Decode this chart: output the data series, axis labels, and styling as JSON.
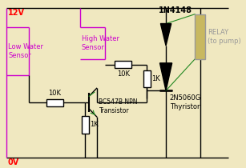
{
  "bg_color": "#f0e8c0",
  "label_12V": "12V",
  "label_0V": "0V",
  "label_1N4148": "1N4148",
  "label_relay": "RELAY\n(to pump)",
  "label_low_water": "Low Water\nSensor",
  "label_high_water": "High Water\nSensor",
  "label_10K_top": "10K",
  "label_1K_top": "1K",
  "label_10K_bot": "10K",
  "label_1K_bot": "1K",
  "label_transistor": "BC547B NPN\nTransistor",
  "label_thyristor": "2N5060G\nThyristor",
  "wire_color": "#000000",
  "magenta": "#cc00cc",
  "green": "#228822",
  "gray": "#999999",
  "relay_fill": "#c8b860"
}
